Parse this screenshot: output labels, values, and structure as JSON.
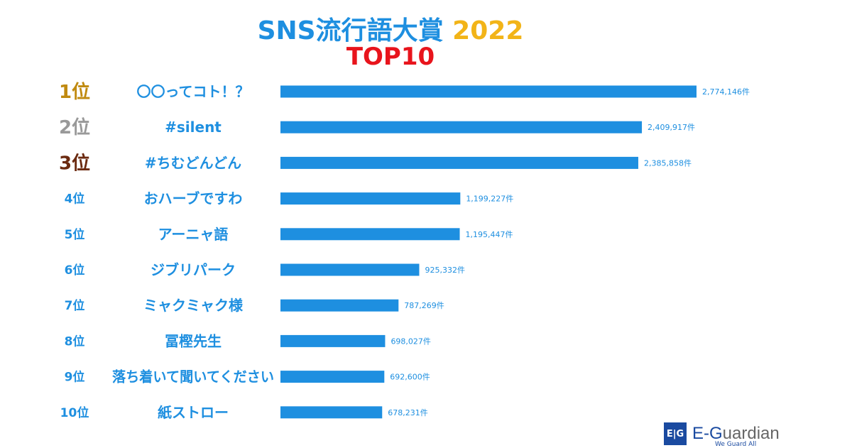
{
  "chart_data": {
    "type": "bar",
    "orientation": "horizontal",
    "title": "SNS流行語大賞",
    "title_year": "2022",
    "subtitle": "TOP10",
    "unit": "件",
    "ranks": [
      "1位",
      "2位",
      "3位",
      "4位",
      "5位",
      "6位",
      "7位",
      "8位",
      "9位",
      "10位"
    ],
    "rank_colors": [
      "#c08a10",
      "#999999",
      "#6b2a10",
      "#1e8fe0",
      "#1e8fe0",
      "#1e8fe0",
      "#1e8fe0",
      "#1e8fe0",
      "#1e8fe0",
      "#1e8fe0"
    ],
    "categories": [
      "〇〇ってコト！？",
      "#silent",
      "#ちむどんどん",
      "おハーブですわ",
      "アーニャ語",
      "ジブリパーク",
      "ミャクミャク様",
      "冨樫先生",
      "落ち着いて聞いてください",
      "紙ストロー"
    ],
    "values": [
      2774146,
      2409917,
      2385858,
      1199227,
      1195447,
      925332,
      787269,
      698027,
      692600,
      678231
    ],
    "value_labels": [
      "2,774,146件",
      "2,409,917件",
      "2,385,858件",
      "1,199,227件",
      "1,195,447件",
      "925,332件",
      "787,269件",
      "698,027件",
      "692,600件",
      "678,231件"
    ],
    "bar_color": "#1e8fe0",
    "xlim": [
      0,
      2774146
    ]
  },
  "logo": {
    "name_a": "E-G",
    "name_b": "uardian",
    "tagline": "We Guard All",
    "mark": "E|G"
  }
}
